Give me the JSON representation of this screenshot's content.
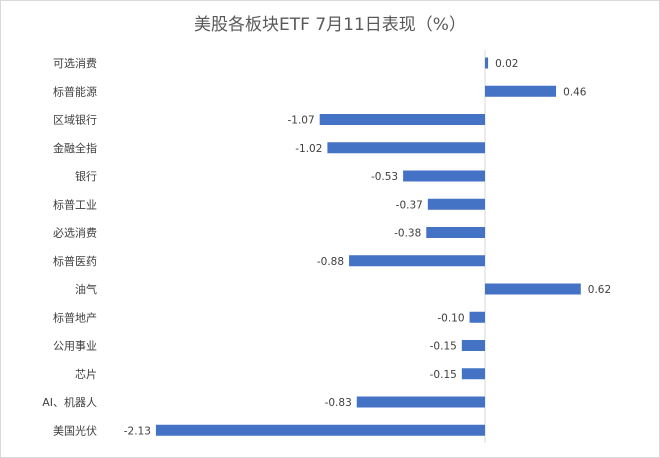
{
  "chart_data": {
    "type": "bar",
    "orientation": "horizontal",
    "title": "美股各板块ETF  7月11日表现（%）",
    "categories": [
      "可选消费",
      "标普能源",
      "区域银行",
      "金融全指",
      "银行",
      "标普工业",
      "必选消费",
      "标普医药",
      "油气",
      "标普地产",
      "公用事业",
      "芯片",
      "AI、机器人",
      "美国光伏"
    ],
    "values": [
      0.02,
      0.46,
      -1.07,
      -1.02,
      -0.53,
      -0.37,
      -0.38,
      -0.88,
      0.62,
      -0.1,
      -0.15,
      -0.15,
      -0.83,
      -2.13
    ],
    "value_labels": [
      "0.02",
      "0.46",
      "-1.07",
      "-1.02",
      "-0.53",
      "-0.37",
      "-0.38",
      "-0.88",
      "0.62",
      "-0.10",
      "-0.15",
      "-0.15",
      "-0.83",
      "-2.13"
    ],
    "bar_color": "#4472c4",
    "grid": false,
    "legend": "none"
  }
}
